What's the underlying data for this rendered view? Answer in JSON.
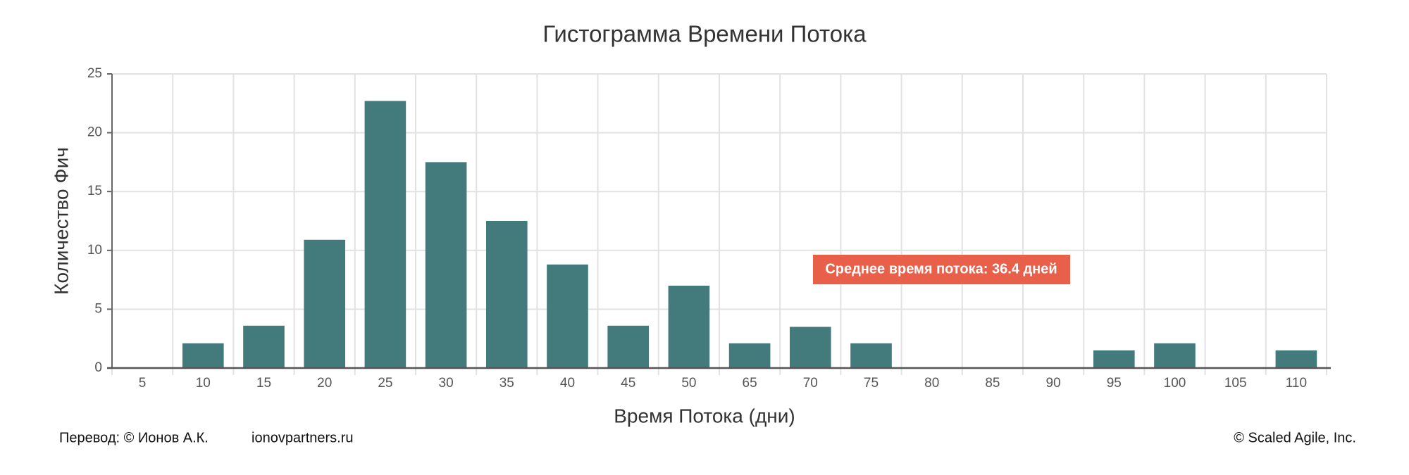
{
  "chart_data": {
    "type": "bar",
    "title": "Гистограмма Времени Потока",
    "xlabel": "Время Потока (дни)",
    "ylabel": "Количество Фич",
    "categories": [
      "5",
      "10",
      "15",
      "20",
      "25",
      "30",
      "35",
      "40",
      "45",
      "50",
      "65",
      "70",
      "75",
      "80",
      "85",
      "90",
      "95",
      "100",
      "105",
      "110"
    ],
    "values": [
      0,
      2.1,
      3.6,
      10.9,
      22.7,
      17.5,
      12.5,
      8.8,
      3.6,
      7.0,
      2.1,
      3.5,
      2.1,
      0,
      0,
      0,
      1.5,
      2.1,
      0,
      1.5
    ],
    "color": "#437a7b",
    "ylim": [
      0,
      25
    ],
    "yticks": [
      0,
      5,
      10,
      15,
      20,
      25
    ],
    "grid": true,
    "annotation": "Среднее время потока: 36.4 дней",
    "annotation_color": "#e8604a"
  },
  "footer": {
    "translation": "Перевод: © Ионов А.К.",
    "site": "ionovpartners.ru",
    "copyright": "© Scaled Agile,  Inc."
  }
}
